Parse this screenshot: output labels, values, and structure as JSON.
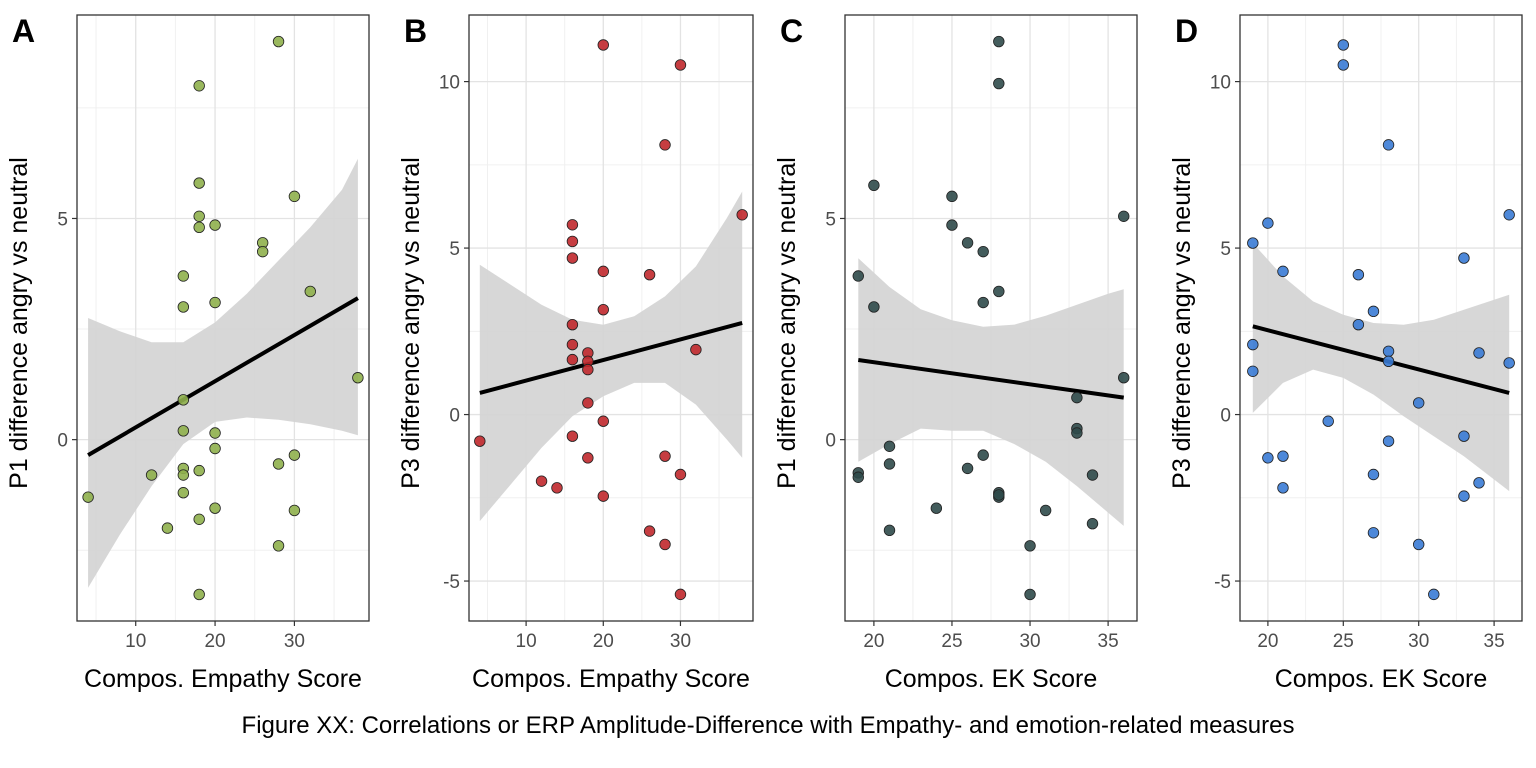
{
  "caption": "Figure XX: Correlations or ERP Amplitude-Difference with Empathy- and emotion-related measures",
  "colors": {
    "A_point": "#8fb04d",
    "B_point": "#c0282c",
    "C_point": "#2f4a4a",
    "D_point": "#3a7bd5",
    "band": "#d3d3d3",
    "line": "#000000"
  },
  "chart_data": [
    {
      "panel": "A",
      "type": "scatter",
      "xlabel": "Compos. Empathy Score",
      "ylabel": "P1 difference angry vs neutral",
      "xlim": [
        2.6,
        39.4
      ],
      "ylim": [
        -4.1,
        9.6
      ],
      "xticks": [
        10,
        20,
        30
      ],
      "yticks": [
        0,
        5
      ],
      "x": [
        4,
        12,
        14,
        16,
        16,
        16,
        16,
        16,
        16,
        16,
        18,
        18,
        18,
        18,
        18,
        18,
        18,
        20,
        20,
        20,
        20,
        20,
        26,
        26,
        28,
        28,
        28,
        30,
        30,
        30,
        32,
        38
      ],
      "y": [
        -1.3,
        -0.8,
        -2.0,
        3.7,
        3.0,
        0.9,
        0.2,
        -0.65,
        -0.8,
        -1.2,
        8.0,
        5.8,
        5.05,
        -0.7,
        -1.8,
        -3.5,
        4.8,
        4.85,
        3.1,
        0.15,
        -0.2,
        -1.55,
        4.45,
        4.25,
        9.0,
        -0.55,
        -2.4,
        5.5,
        -0.35,
        -1.6,
        3.35,
        1.4
      ],
      "fit": {
        "x": [
          4,
          38
        ],
        "y": [
          -0.35,
          3.2
        ]
      },
      "band": {
        "x": [
          4,
          8,
          12,
          16,
          20,
          24,
          28,
          32,
          36,
          38
        ],
        "upper": [
          2.75,
          2.45,
          2.2,
          2.2,
          2.65,
          3.3,
          4.05,
          4.8,
          5.65,
          6.35
        ],
        "lower": [
          -3.35,
          -2.15,
          -1.05,
          -0.1,
          0.4,
          0.5,
          0.45,
          0.35,
          0.2,
          0.1
        ]
      }
    },
    {
      "panel": "B",
      "type": "scatter",
      "xlabel": "Compos. Empathy Score",
      "ylabel": "P3 difference angry vs neutral",
      "xlim": [
        2.6,
        39.4
      ],
      "ylim": [
        -6.2,
        12.0
      ],
      "xticks": [
        10,
        20,
        30
      ],
      "yticks": [
        -5,
        0,
        5,
        10
      ],
      "x": [
        4,
        12,
        14,
        16,
        16,
        16,
        16,
        16,
        16,
        16,
        18,
        18,
        18,
        18,
        18,
        20,
        20,
        20,
        20,
        20,
        26,
        26,
        28,
        28,
        28,
        30,
        30,
        30,
        32,
        38
      ],
      "y": [
        -0.8,
        -2.0,
        -2.2,
        5.7,
        5.2,
        4.7,
        2.7,
        2.1,
        1.65,
        -0.65,
        1.85,
        1.6,
        1.35,
        0.35,
        -1.3,
        11.1,
        4.3,
        3.15,
        -0.2,
        -2.45,
        4.2,
        -3.5,
        8.1,
        -1.25,
        -3.9,
        10.5,
        -1.8,
        -5.4,
        1.95,
        6.0
      ],
      "fit": {
        "x": [
          4,
          38
        ],
        "y": [
          0.65,
          2.75
        ]
      },
      "band": {
        "x": [
          4,
          8,
          12,
          16,
          20,
          24,
          28,
          32,
          36,
          38
        ],
        "upper": [
          4.5,
          3.9,
          3.3,
          2.85,
          2.7,
          2.95,
          3.55,
          4.45,
          5.9,
          6.7
        ],
        "lower": [
          -3.2,
          -2.1,
          -1.0,
          -0.05,
          0.55,
          0.95,
          0.95,
          0.3,
          -0.75,
          -1.3
        ]
      }
    },
    {
      "panel": "C",
      "type": "scatter",
      "xlabel": "Compos. EK Score",
      "ylabel": "P1 difference angry vs neutral",
      "xlim": [
        18.15,
        36.85
      ],
      "ylim": [
        -4.1,
        9.6
      ],
      "xticks": [
        20,
        25,
        30,
        35
      ],
      "yticks": [
        0,
        5
      ],
      "x": [
        19,
        19,
        19,
        20,
        20,
        21,
        21,
        21,
        24,
        25,
        25,
        26,
        26,
        27,
        27,
        27,
        28,
        28,
        28,
        28,
        28,
        28,
        30,
        30,
        31,
        33,
        33,
        33,
        34,
        34,
        36,
        36
      ],
      "y": [
        3.7,
        -0.75,
        -0.85,
        5.75,
        3.0,
        -0.15,
        -0.55,
        -2.05,
        -1.55,
        5.5,
        4.85,
        4.45,
        -0.65,
        4.25,
        3.1,
        -0.35,
        9.0,
        8.05,
        3.35,
        -1.2,
        -1.3,
        -1.25,
        -2.4,
        -3.5,
        -1.6,
        0.95,
        0.25,
        0.15,
        -0.8,
        -1.9,
        5.05,
        1.4
      ],
      "fit": {
        "x": [
          19,
          36
        ],
        "y": [
          1.8,
          0.95
        ]
      },
      "band": {
        "x": [
          19,
          21,
          23,
          25,
          27,
          29,
          31,
          33,
          35,
          36
        ],
        "upper": [
          4.1,
          3.45,
          2.95,
          2.7,
          2.55,
          2.6,
          2.8,
          3.05,
          3.3,
          3.4
        ],
        "lower": [
          -0.5,
          -0.1,
          0.25,
          0.2,
          0.2,
          -0.1,
          -0.5,
          -1.05,
          -1.65,
          -1.95
        ]
      }
    },
    {
      "panel": "D",
      "type": "scatter",
      "xlabel": "Compos. EK Score",
      "ylabel": "P3 difference angry vs neutral",
      "xlim": [
        18.15,
        36.85
      ],
      "ylim": [
        -6.2,
        12.0
      ],
      "xticks": [
        20,
        25,
        30,
        35
      ],
      "yticks": [
        -5,
        0,
        5,
        10
      ],
      "x": [
        19,
        19,
        19,
        20,
        20,
        21,
        21,
        21,
        24,
        25,
        25,
        26,
        26,
        27,
        27,
        27,
        28,
        28,
        28,
        28,
        30,
        30,
        31,
        33,
        33,
        33,
        34,
        34,
        36,
        36
      ],
      "y": [
        5.15,
        2.1,
        1.3,
        5.75,
        -1.3,
        4.3,
        -1.25,
        -2.2,
        -0.2,
        11.1,
        10.5,
        4.2,
        2.7,
        3.1,
        -1.8,
        -3.55,
        8.1,
        1.9,
        1.6,
        -0.8,
        0.35,
        -3.9,
        -5.4,
        4.7,
        -0.65,
        -2.45,
        1.85,
        -2.05,
        6.0,
        1.55
      ],
      "fit": {
        "x": [
          19,
          36
        ],
        "y": [
          2.65,
          0.65
        ]
      },
      "band": {
        "x": [
          19,
          21,
          23,
          25,
          27,
          29,
          31,
          33,
          35,
          36
        ],
        "upper": [
          5.15,
          4.15,
          3.4,
          3.0,
          2.75,
          2.7,
          2.85,
          3.15,
          3.45,
          3.6
        ],
        "lower": [
          0.05,
          0.95,
          1.35,
          1.1,
          0.6,
          -0.05,
          -0.65,
          -1.25,
          -1.95,
          -2.3
        ]
      }
    }
  ]
}
